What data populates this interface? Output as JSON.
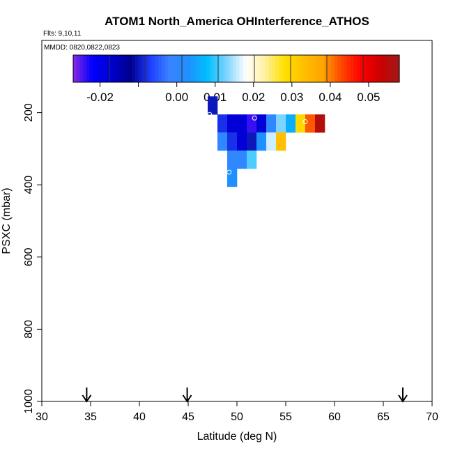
{
  "chart_data": {
    "type": "heatmap",
    "title": "ATOM1 North_America OHInterference_ATHOS",
    "flights_note": "Flts: 9,10,11",
    "dates_note": "MMDD: 0820,0822,0823",
    "xlabel": "Latitude (deg N)",
    "ylabel": "PSXC (mbar)",
    "xlim": [
      30,
      70
    ],
    "ylim": [
      1000,
      0
    ],
    "x_ticks": [
      "30",
      "35",
      "40",
      "45",
      "50",
      "55",
      "60",
      "65",
      "70"
    ],
    "y_ticks": [
      "200",
      "400",
      "600",
      "800",
      "1000"
    ],
    "colorbar": {
      "range": [
        -0.027,
        0.058
      ],
      "tick_values": [
        -0.02,
        0.0,
        0.01,
        0.02,
        0.03,
        0.04,
        0.05
      ],
      "tick_labels": [
        "-0.02",
        "0.00",
        "0.01",
        "0.02",
        "0.03",
        "0.04",
        "0.05"
      ],
      "colors": [
        "#8a2be2",
        "#0000ff",
        "#0000cd",
        "#00008b",
        "#1e3cff",
        "#3a82ff",
        "#1e90ff",
        "#00bfff",
        "#7fd4ff",
        "#ffffff",
        "#fff0a0",
        "#ffe000",
        "#ffc000",
        "#ffa500",
        "#ff4500",
        "#ff0000",
        "#cc0000",
        "#a01818"
      ]
    },
    "cell_width_deg": 1.0,
    "cell_height_mbar": 50,
    "cells": [
      {
        "lat": 47.5,
        "p": 180,
        "value": -0.01
      },
      {
        "lat": 48.5,
        "p": 230,
        "value": -0.008
      },
      {
        "lat": 49.5,
        "p": 230,
        "value": -0.018
      },
      {
        "lat": 50.5,
        "p": 230,
        "value": -0.018
      },
      {
        "lat": 51.5,
        "p": 230,
        "value": -0.024
      },
      {
        "lat": 52.5,
        "p": 230,
        "value": -0.018
      },
      {
        "lat": 53.5,
        "p": 230,
        "value": 0.0
      },
      {
        "lat": 54.5,
        "p": 230,
        "value": 0.013
      },
      {
        "lat": 55.5,
        "p": 230,
        "value": 0.006
      },
      {
        "lat": 56.5,
        "p": 230,
        "value": 0.029
      },
      {
        "lat": 57.5,
        "p": 230,
        "value": 0.042
      },
      {
        "lat": 58.5,
        "p": 230,
        "value": 0.056
      },
      {
        "lat": 48.5,
        "p": 280,
        "value": 0.0
      },
      {
        "lat": 49.5,
        "p": 280,
        "value": -0.008
      },
      {
        "lat": 50.5,
        "p": 280,
        "value": -0.018
      },
      {
        "lat": 51.5,
        "p": 280,
        "value": -0.01
      },
      {
        "lat": 52.5,
        "p": 280,
        "value": 0.003
      },
      {
        "lat": 53.5,
        "p": 280,
        "value": 0.016
      },
      {
        "lat": 54.5,
        "p": 280,
        "value": 0.033
      },
      {
        "lat": 49.5,
        "p": 330,
        "value": 0.0
      },
      {
        "lat": 50.5,
        "p": 330,
        "value": 0.0
      },
      {
        "lat": 51.5,
        "p": 330,
        "value": 0.011
      },
      {
        "lat": 49.5,
        "p": 380,
        "value": 0.003
      }
    ],
    "markers": [
      {
        "lat": 47.2,
        "p": 205
      },
      {
        "lat": 51.8,
        "p": 215
      },
      {
        "lat": 57.0,
        "p": 225
      },
      {
        "lat": 49.2,
        "p": 365
      }
    ],
    "arrows_lat": [
      34.6,
      44.9,
      67.0
    ]
  }
}
